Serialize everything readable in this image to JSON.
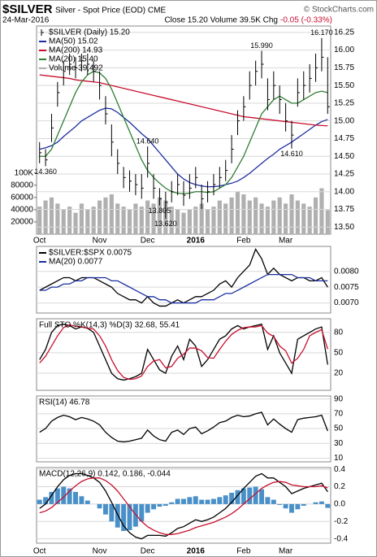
{
  "header": {
    "symbol": "$SILVER",
    "description": "Silver - Spot Price (EOD) CME",
    "copyright": "© StockCharts.com",
    "date": "24-Mar-2016",
    "quote": "Close 15.20 Volume 39.5K Chg",
    "change": "-0.05 (-0.33%)",
    "change_color": "#c8102e"
  },
  "chart_data": [
    {
      "type": "hlc",
      "name": "$SILVER (Daily) 15.20",
      "color": "#000000",
      "grid": true,
      "categories": [
        "Oct",
        null,
        null,
        null,
        null,
        null,
        null,
        null,
        null,
        null,
        "Nov",
        null,
        null,
        null,
        null,
        null,
        null,
        null,
        "Dec",
        null,
        null,
        null,
        null,
        null,
        null,
        null,
        "2016",
        null,
        null,
        null,
        null,
        null,
        null,
        null,
        "Feb",
        null,
        null,
        null,
        null,
        null,
        null,
        "Mar",
        null,
        null,
        null,
        null,
        null,
        null,
        null
      ],
      "high": [
        14.7,
        14.6,
        15.1,
        15.55,
        15.85,
        15.95,
        15.9,
        15.95,
        15.95,
        15.85,
        15.7,
        15.35,
        14.95,
        14.6,
        14.35,
        14.3,
        14.25,
        14.25,
        14.64,
        14.25,
        14.05,
        14.0,
        14.15,
        14.25,
        14.15,
        14.25,
        14.35,
        14.1,
        14.15,
        14.25,
        14.35,
        14.45,
        14.8,
        15.15,
        15.35,
        15.7,
        15.85,
        15.99,
        15.6,
        15.7,
        15.5,
        15.25,
        15.0,
        15.6,
        15.7,
        15.8,
        15.95,
        16.17,
        15.9
      ],
      "low": [
        14.4,
        14.36,
        14.7,
        15.2,
        15.5,
        15.65,
        15.6,
        15.7,
        15.65,
        15.55,
        15.3,
        14.95,
        14.5,
        14.25,
        14.05,
        14.0,
        13.95,
        13.9,
        14.2,
        13.9,
        13.805,
        13.62,
        13.85,
        13.95,
        13.8,
        13.9,
        14.05,
        13.75,
        13.85,
        13.95,
        14.05,
        14.15,
        14.4,
        14.8,
        15.0,
        15.3,
        15.5,
        15.6,
        15.15,
        15.3,
        15.1,
        14.85,
        14.61,
        15.2,
        15.3,
        15.4,
        15.55,
        15.7,
        15.1
      ],
      "close": [
        14.55,
        14.45,
        14.9,
        15.4,
        15.7,
        15.8,
        15.75,
        15.85,
        15.8,
        15.7,
        15.5,
        15.1,
        14.7,
        14.4,
        14.2,
        14.15,
        14.1,
        14.05,
        14.4,
        14.05,
        13.9,
        13.85,
        14.0,
        14.1,
        13.95,
        14.05,
        14.2,
        13.9,
        14.0,
        14.1,
        14.2,
        14.3,
        14.6,
        15.0,
        15.2,
        15.5,
        15.7,
        15.8,
        15.3,
        15.5,
        15.3,
        15.0,
        14.8,
        15.4,
        15.5,
        15.6,
        15.75,
        15.9,
        15.2
      ],
      "series": [
        {
          "name": "MA(50) 15.02",
          "color": "#1c2fa0",
          "values": [
            14.6,
            14.62,
            14.65,
            14.7,
            14.78,
            14.85,
            14.92,
            15.0,
            15.05,
            15.1,
            15.15,
            15.18,
            15.17,
            15.12,
            15.05,
            14.98,
            14.9,
            14.82,
            14.75,
            14.65,
            14.55,
            14.45,
            14.35,
            14.25,
            14.18,
            14.13,
            14.1,
            14.08,
            14.07,
            14.07,
            14.08,
            14.1,
            14.12,
            14.15,
            14.2,
            14.26,
            14.33,
            14.4,
            14.47,
            14.53,
            14.6,
            14.65,
            14.7,
            14.76,
            14.82,
            14.88,
            14.94,
            14.99,
            15.02
          ]
        },
        {
          "name": "MA(200) 14.93",
          "color": "#c8102e",
          "values": [
            15.65,
            15.64,
            15.63,
            15.62,
            15.61,
            15.6,
            15.58,
            15.57,
            15.56,
            15.55,
            15.54,
            15.52,
            15.5,
            15.48,
            15.46,
            15.44,
            15.42,
            15.4,
            15.38,
            15.36,
            15.34,
            15.32,
            15.3,
            15.28,
            15.26,
            15.24,
            15.22,
            15.2,
            15.18,
            15.16,
            15.14,
            15.12,
            15.1,
            15.08,
            15.06,
            15.05,
            15.04,
            15.03,
            15.02,
            15.01,
            15.0,
            14.99,
            14.98,
            14.97,
            14.96,
            14.95,
            14.94,
            14.935,
            14.93
          ]
        },
        {
          "name": "MA(20) 15.40",
          "color": "#2e7d32",
          "values": [
            14.5,
            14.5,
            14.6,
            14.8,
            15.0,
            15.2,
            15.4,
            15.55,
            15.65,
            15.7,
            15.68,
            15.6,
            15.45,
            15.25,
            15.05,
            14.85,
            14.65,
            14.45,
            14.3,
            14.2,
            14.12,
            14.05,
            14.0,
            13.98,
            13.97,
            13.98,
            14.0,
            14.0,
            13.99,
            14.0,
            14.05,
            14.1,
            14.2,
            14.35,
            14.5,
            14.7,
            14.9,
            15.1,
            15.2,
            15.3,
            15.35,
            15.3,
            15.25,
            15.25,
            15.3,
            15.35,
            15.4,
            15.42,
            15.4
          ]
        }
      ],
      "volume": {
        "name": "Volume 39,492",
        "color": "#b0b0b0",
        "lim": [
          0,
          340000
        ],
        "ticks": [
          20000,
          40000,
          60000,
          80000,
          {
            "value": 100000,
            "label": "100K"
          }
        ],
        "values": [
          45000,
          55000,
          60000,
          50000,
          40000,
          45000,
          35000,
          50000,
          40000,
          45000,
          55000,
          60000,
          65000,
          50000,
          45000,
          40000,
          50000,
          45000,
          55000,
          50000,
          60000,
          55000,
          45000,
          40000,
          35000,
          40000,
          45000,
          50000,
          40000,
          45000,
          55000,
          50000,
          60000,
          70000,
          65000,
          55000,
          60000,
          50000,
          45000,
          55000,
          60000,
          50000,
          65000,
          55000,
          50000,
          45000,
          60000,
          75000,
          39492
        ]
      },
      "annotations": [
        {
          "text": "14.360",
          "value": 14.36
        },
        {
          "text": "14.640",
          "value": 14.64
        },
        {
          "text": "13.805",
          "value": 13.805
        },
        {
          "text": "13.620",
          "value": 13.62
        },
        {
          "text": "15.990",
          "value": 15.99
        },
        {
          "text": "14.610",
          "value": 14.61
        },
        {
          "text": "16.170",
          "value": 16.17
        }
      ],
      "ylim": [
        13.4,
        16.34
      ],
      "yticks": [
        {
          "value": 13.5,
          "label": "13.50"
        },
        13.75,
        {
          "value": 14,
          "label": "14.00"
        },
        14.25,
        {
          "value": 14.5,
          "label": "14.50"
        },
        14.75,
        {
          "value": 15,
          "label": "15.00"
        },
        15.25,
        {
          "value": 15.5,
          "label": "15.50"
        },
        15.75,
        {
          "value": 16,
          "label": "16.00"
        },
        16.25
      ]
    },
    {
      "type": "line",
      "grid": true,
      "series": [
        {
          "name": "$SILVER:$SPX 0.0075",
          "color": "#000000",
          "values": [
            0.0074,
            0.0075,
            0.0076,
            0.0077,
            0.0078,
            0.0078,
            0.0077,
            0.0078,
            0.0078,
            0.0078,
            0.0077,
            0.0076,
            0.0075,
            0.0073,
            0.0072,
            0.0071,
            0.0071,
            0.007,
            0.0072,
            0.007,
            0.0069,
            0.0069,
            0.007,
            0.0071,
            0.007,
            0.0071,
            0.0072,
            0.0072,
            0.0073,
            0.0074,
            0.0076,
            0.0077,
            0.0075,
            0.0078,
            0.008,
            0.0082,
            0.0087,
            0.0084,
            0.0079,
            0.0081,
            0.0079,
            0.0078,
            0.0077,
            0.0078,
            0.0078,
            0.0077,
            0.0077,
            0.0078,
            0.0075
          ]
        },
        {
          "name": "MA(20) 0.0077",
          "color": "#1c2fa0",
          "values": [
            0.0074,
            0.0074,
            0.0075,
            0.0075,
            0.0076,
            0.0076,
            0.0077,
            0.0077,
            0.0078,
            0.0078,
            0.0078,
            0.0078,
            0.0077,
            0.0077,
            0.0076,
            0.0075,
            0.0074,
            0.0073,
            0.0072,
            0.0072,
            0.0071,
            0.0071,
            0.007,
            0.007,
            0.007,
            0.007,
            0.007,
            0.0071,
            0.0071,
            0.0071,
            0.0072,
            0.0073,
            0.0073,
            0.0074,
            0.0075,
            0.0076,
            0.0077,
            0.0078,
            0.0079,
            0.0079,
            0.0079,
            0.0079,
            0.0079,
            0.0078,
            0.0078,
            0.0078,
            0.0077,
            0.0077,
            0.0077
          ]
        }
      ],
      "ylim": [
        0.00668,
        0.00879
      ],
      "yticks": [
        {
          "value": 0.007,
          "label": "0.0070"
        },
        0.0075,
        {
          "value": 0.008,
          "label": "0.0080"
        }
      ]
    },
    {
      "type": "line",
      "grid": true,
      "title": "Full STO %K(14,3) %D(3) 32.68, 55.41",
      "series": [
        {
          "color": "#000000",
          "values": [
            40,
            55,
            80,
            90,
            92,
            90,
            85,
            88,
            86,
            80,
            60,
            40,
            20,
            12,
            10,
            12,
            15,
            20,
            55,
            40,
            25,
            20,
            45,
            60,
            40,
            70,
            60,
            30,
            40,
            55,
            70,
            75,
            85,
            90,
            85,
            88,
            90,
            92,
            55,
            75,
            50,
            35,
            20,
            70,
            75,
            80,
            85,
            88,
            32.68
          ]
        },
        {
          "color": "#c8102e",
          "values": [
            35,
            45,
            60,
            75,
            87,
            91,
            89,
            88,
            86,
            85,
            75,
            60,
            40,
            24,
            14,
            11,
            12,
            16,
            30,
            38,
            40,
            28,
            30,
            42,
            48,
            57,
            57,
            53,
            43,
            42,
            55,
            67,
            77,
            83,
            87,
            88,
            88,
            90,
            79,
            74,
            60,
            53,
            35,
            42,
            55,
            75,
            80,
            84,
            55.41
          ]
        }
      ],
      "ylim": [
        -5,
        100
      ],
      "yticks": [
        20,
        50,
        80
      ]
    },
    {
      "type": "line",
      "grid": true,
      "title": "RSI(14) 46.78",
      "series": [
        {
          "color": "#000000",
          "values": [
            45,
            50,
            60,
            65,
            68,
            66,
            62,
            65,
            63,
            60,
            55,
            45,
            38,
            33,
            32,
            33,
            35,
            37,
            48,
            40,
            35,
            33,
            45,
            48,
            42,
            50,
            52,
            43,
            47,
            52,
            58,
            60,
            65,
            68,
            66,
            67,
            70,
            72,
            55,
            63,
            56,
            50,
            45,
            62,
            64,
            65,
            66,
            68,
            46.78
          ]
        }
      ],
      "ylim": [
        5,
        94
      ],
      "yticks": [
        10,
        30,
        50,
        70,
        90
      ]
    },
    {
      "type": "line",
      "grid": true,
      "title": "MACD(12,26,9) 0.142, 0.186, -0.044",
      "series": [
        {
          "type": "bar",
          "color": "#4a90c8",
          "values": [
            0.05,
            0.08,
            0.14,
            0.18,
            0.2,
            0.18,
            0.14,
            0.09,
            0.04,
            0,
            -0.05,
            -0.12,
            -0.2,
            -0.27,
            -0.31,
            -0.3,
            -0.26,
            -0.2,
            -0.1,
            -0.06,
            -0.03,
            -0.02,
            0.02,
            0.06,
            0.06,
            0.08,
            0.09,
            0.05,
            0.05,
            0.06,
            0.08,
            0.1,
            0.13,
            0.16,
            0.18,
            0.19,
            0.2,
            0.17,
            0.08,
            0.05,
            -0.01,
            -0.05,
            -0.1,
            -0.06,
            -0.02,
            0,
            0.02,
            0.03,
            -0.044
          ]
        },
        {
          "color": "#000000",
          "values": [
            -0.05,
            0,
            0.1,
            0.2,
            0.28,
            0.33,
            0.35,
            0.35,
            0.33,
            0.3,
            0.25,
            0.15,
            0.02,
            -0.12,
            -0.25,
            -0.33,
            -0.38,
            -0.4,
            -0.36,
            -0.36,
            -0.36,
            -0.37,
            -0.33,
            -0.28,
            -0.26,
            -0.22,
            -0.18,
            -0.2,
            -0.18,
            -0.15,
            -0.1,
            -0.05,
            0.02,
            0.1,
            0.18,
            0.25,
            0.32,
            0.35,
            0.3,
            0.3,
            0.25,
            0.2,
            0.12,
            0.15,
            0.18,
            0.2,
            0.22,
            0.24,
            0.142
          ]
        },
        {
          "color": "#c8102e",
          "values": [
            -0.1,
            -0.08,
            -0.04,
            0.02,
            0.08,
            0.15,
            0.21,
            0.26,
            0.29,
            0.3,
            0.3,
            0.27,
            0.22,
            0.15,
            0.06,
            -0.03,
            -0.12,
            -0.2,
            -0.26,
            -0.3,
            -0.33,
            -0.35,
            -0.35,
            -0.34,
            -0.32,
            -0.3,
            -0.27,
            -0.25,
            -0.23,
            -0.21,
            -0.18,
            -0.15,
            -0.11,
            -0.06,
            0,
            0.06,
            0.12,
            0.18,
            0.22,
            0.25,
            0.26,
            0.25,
            0.22,
            0.21,
            0.2,
            0.2,
            0.2,
            0.21,
            0.186
          ]
        }
      ],
      "ylim": [
        -0.45,
        0.42
      ],
      "yticks": [
        -0.4,
        -0.2,
        {
          "value": 0,
          "label": "0.0"
        },
        0.2,
        0.4
      ]
    }
  ]
}
